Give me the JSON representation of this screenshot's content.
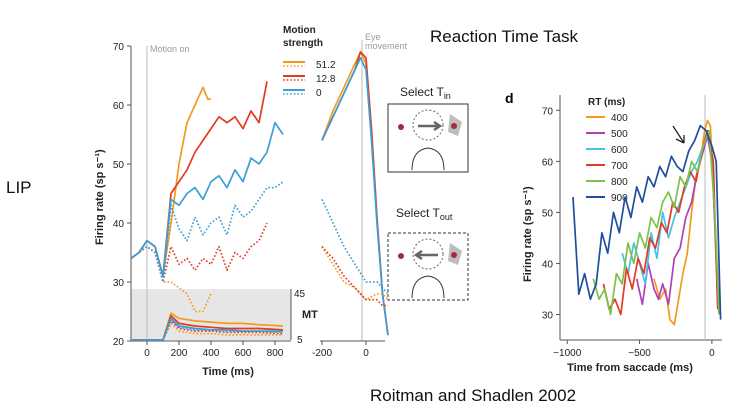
{
  "page": {
    "slide_title": "Reaction Time Task",
    "area_label": "LIP",
    "citation": "Roitman and Shadlen 2002"
  },
  "panel_left": {
    "y_ticks": [
      "20",
      "30",
      "40",
      "50",
      "60",
      "70"
    ],
    "x_ticks": [
      "0",
      "200",
      "400",
      "600",
      "800"
    ],
    "x_ticks_sac": [
      "-200",
      "0"
    ],
    "ylabel": "Firing rate (sp s⁻¹)",
    "xlabel": "Time (ms)",
    "motion_on": "Motion on",
    "eye_movement": "Eye movement",
    "legend_title": "Motion strength",
    "legend": [
      {
        "label": "51.2",
        "color": "#f39a1e"
      },
      {
        "label": "12.8",
        "color": "#e23b24"
      },
      {
        "label": "0",
        "color": "#3a9fd6"
      }
    ],
    "mt_label": "MT",
    "mt_ticks": [
      "45",
      "5"
    ],
    "select_tin": "Select T",
    "select_tin_sub": "in",
    "select_tout": "Select T",
    "select_tout_sub": "out"
  },
  "panel_d": {
    "panel_letter": "d",
    "legend_title": "RT (ms)",
    "y_ticks": [
      "30",
      "40",
      "50",
      "60",
      "70"
    ],
    "x_ticks": [
      "−1000",
      "−500",
      "0"
    ],
    "ylabel": "Firing rate (sp s⁻¹)",
    "xlabel": "Time from saccade (ms)"
  },
  "chart_data": [
    {
      "type": "line",
      "title": "",
      "xlabel": "Time (ms)",
      "ylabel": "Firing rate (sp s⁻¹)",
      "ylim": [
        20,
        70
      ],
      "xlim": [
        -100,
        900
      ],
      "series": [
        {
          "name": "51.2",
          "style": "solid",
          "color": "#f39a1e",
          "x": [
            -100,
            -50,
            0,
            50,
            100,
            150,
            200,
            250,
            300,
            350,
            380,
            400
          ],
          "y": [
            34,
            35,
            37,
            36,
            31,
            40,
            50,
            57,
            60,
            63,
            61,
            61
          ]
        },
        {
          "name": "12.8",
          "style": "solid",
          "color": "#e23b24",
          "x": [
            -100,
            -50,
            0,
            50,
            100,
            150,
            200,
            250,
            300,
            350,
            400,
            450,
            500,
            550,
            600,
            650,
            700,
            750
          ],
          "y": [
            34,
            35,
            37,
            36,
            31,
            45,
            47,
            49,
            52,
            54,
            56,
            58,
            57,
            58,
            56,
            59,
            57,
            64
          ]
        },
        {
          "name": "0",
          "style": "solid",
          "color": "#3a9fd6",
          "x": [
            -100,
            -50,
            0,
            50,
            100,
            150,
            200,
            250,
            300,
            350,
            400,
            450,
            500,
            550,
            600,
            650,
            700,
            750,
            800,
            850
          ],
          "y": [
            34,
            35,
            37,
            36,
            31,
            44,
            43,
            45,
            46,
            44,
            47,
            48,
            46,
            49,
            47,
            51,
            50,
            52,
            57,
            55
          ]
        },
        {
          "name": "51.2",
          "style": "dotted",
          "color": "#f39a1e",
          "x": [
            -100,
            -50,
            0,
            50,
            100,
            150,
            200,
            250,
            300,
            350,
            400
          ],
          "y": [
            34,
            35,
            36,
            35,
            30,
            30,
            29,
            28,
            25,
            25,
            28
          ]
        },
        {
          "name": "12.8",
          "style": "dotted",
          "color": "#e23b24",
          "x": [
            -100,
            -50,
            0,
            50,
            100,
            150,
            200,
            250,
            300,
            350,
            400,
            450,
            500,
            550,
            600,
            650,
            700,
            750
          ],
          "y": [
            34,
            35,
            36,
            35,
            30,
            36,
            33,
            34,
            32,
            34,
            33,
            36,
            32,
            35,
            34,
            36,
            37,
            40
          ]
        },
        {
          "name": "0",
          "style": "dotted",
          "color": "#3a9fd6",
          "x": [
            -100,
            -50,
            0,
            50,
            100,
            150,
            200,
            250,
            300,
            350,
            400,
            450,
            500,
            550,
            600,
            650,
            700,
            750,
            800,
            850
          ],
          "y": [
            34,
            35,
            36,
            35,
            30,
            43,
            39,
            37,
            41,
            38,
            40,
            41,
            38,
            43,
            41,
            42,
            44,
            46,
            46,
            47
          ]
        }
      ]
    },
    {
      "type": "line",
      "title": "",
      "xlabel": "",
      "ylabel": "",
      "ylim": [
        20,
        70
      ],
      "xlim": [
        -250,
        100
      ],
      "series": [
        {
          "name": "51.2",
          "style": "solid",
          "color": "#f39a1e",
          "x": [
            -200,
            -150,
            -100,
            -50,
            -25,
            0,
            25,
            50,
            75,
            100
          ],
          "y": [
            54,
            59,
            63,
            67,
            69,
            67,
            55,
            40,
            28,
            21
          ]
        },
        {
          "name": "12.8",
          "style": "solid",
          "color": "#e23b24",
          "x": [
            -200,
            -150,
            -100,
            -50,
            -25,
            0,
            25,
            50,
            75,
            100
          ],
          "y": [
            54,
            58,
            62,
            66,
            69,
            68,
            56,
            41,
            28,
            21
          ]
        },
        {
          "name": "0",
          "style": "solid",
          "color": "#3a9fd6",
          "x": [
            -200,
            -150,
            -100,
            -50,
            -25,
            0,
            25,
            50,
            75,
            100
          ],
          "y": [
            54,
            58,
            62,
            66,
            68,
            66,
            54,
            40,
            28,
            21
          ]
        },
        {
          "name": "51.2",
          "style": "dotted",
          "color": "#f39a1e",
          "x": [
            -200,
            -150,
            -100,
            -50,
            0,
            50,
            75,
            100
          ],
          "y": [
            36,
            33,
            30,
            29,
            27,
            28,
            28,
            27
          ]
        },
        {
          "name": "12.8",
          "style": "dotted",
          "color": "#e23b24",
          "x": [
            -200,
            -150,
            -100,
            -50,
            0,
            50,
            75,
            100
          ],
          "y": [
            36,
            34,
            31,
            29,
            27,
            27,
            26,
            26
          ]
        },
        {
          "name": "0",
          "style": "dotted",
          "color": "#3a9fd6",
          "x": [
            -200,
            -150,
            -100,
            -50,
            0,
            50,
            75,
            100
          ],
          "y": [
            44,
            40,
            36,
            33,
            30,
            30,
            29,
            28
          ]
        }
      ]
    },
    {
      "type": "line",
      "title": "",
      "xlabel": "Time (ms)",
      "ylabel": "MT",
      "ylim": [
        5,
        45
      ],
      "xlim": [
        -100,
        900
      ],
      "series": [
        {
          "name": "51.2",
          "style": "solid",
          "color": "#f39a1e",
          "x": [
            -100,
            100,
            150,
            200,
            300,
            400,
            500,
            600,
            700,
            850
          ],
          "y": [
            5,
            5,
            26,
            22,
            20,
            19,
            18,
            18,
            17,
            16
          ]
        },
        {
          "name": "12.8",
          "style": "solid",
          "color": "#e23b24",
          "x": [
            -100,
            100,
            150,
            200,
            300,
            400,
            500,
            600,
            700,
            850
          ],
          "y": [
            5,
            5,
            24,
            18,
            16,
            15,
            14,
            14,
            14,
            13
          ]
        },
        {
          "name": "0",
          "style": "solid",
          "color": "#3a9fd6",
          "x": [
            -100,
            100,
            150,
            200,
            300,
            400,
            500,
            600,
            700,
            850
          ],
          "y": [
            5,
            5,
            22,
            16,
            14,
            13,
            13,
            12,
            12,
            12
          ]
        },
        {
          "name": "51.2",
          "style": "dotted",
          "color": "#f39a1e",
          "x": [
            -100,
            100,
            150,
            200,
            300,
            400,
            500,
            600,
            700,
            850
          ],
          "y": [
            5,
            5,
            18,
            12,
            10,
            10,
            9,
            9,
            9,
            9
          ]
        },
        {
          "name": "12.8",
          "style": "dotted",
          "color": "#e23b24",
          "x": [
            -100,
            100,
            150,
            200,
            300,
            400,
            500,
            600,
            700,
            850
          ],
          "y": [
            5,
            5,
            20,
            14,
            12,
            12,
            11,
            11,
            11,
            10
          ]
        },
        {
          "name": "0",
          "style": "dotted",
          "color": "#3a9fd6",
          "x": [
            -100,
            100,
            150,
            200,
            300,
            400,
            500,
            600,
            700,
            850
          ],
          "y": [
            5,
            5,
            21,
            15,
            13,
            13,
            12,
            12,
            12,
            11
          ]
        }
      ]
    },
    {
      "type": "line",
      "title": "",
      "xlabel": "Time from saccade (ms)",
      "ylabel": "Firing rate (sp s⁻¹)",
      "ylim": [
        25,
        73
      ],
      "xlim": [
        -1050,
        70
      ],
      "legend_title": "RT (ms)",
      "series": [
        {
          "name": "400",
          "color": "#f39a1e",
          "x": [
            -400,
            -360,
            -320,
            -290,
            -260,
            -230,
            -200,
            -170,
            -140,
            -110,
            -80,
            -50,
            -30,
            -10,
            10,
            30,
            50
          ],
          "y": [
            37,
            33,
            35,
            29,
            28,
            33,
            38,
            42,
            50,
            57,
            60,
            66,
            68,
            67,
            55,
            40,
            31
          ]
        },
        {
          "name": "500",
          "color": "#b040b8",
          "x": [
            -520,
            -480,
            -440,
            -400,
            -370,
            -340,
            -300,
            -260,
            -220,
            -180,
            -140,
            -100,
            -60,
            -30,
            0,
            30,
            50
          ],
          "y": [
            37,
            32,
            40,
            35,
            33,
            36,
            32,
            41,
            43,
            49,
            52,
            58,
            62,
            65,
            60,
            42,
            30
          ]
        },
        {
          "name": "600",
          "color": "#45c1ea",
          "x": [
            -620,
            -580,
            -540,
            -500,
            -460,
            -420,
            -380,
            -340,
            -300,
            -260,
            -220,
            -180,
            -140,
            -100,
            -60,
            -20,
            10,
            40
          ],
          "y": [
            42,
            38,
            44,
            40,
            36,
            46,
            41,
            50,
            45,
            49,
            52,
            55,
            58,
            60,
            63,
            66,
            58,
            32
          ]
        },
        {
          "name": "700",
          "color": "#e23b24",
          "x": [
            -750,
            -710,
            -670,
            -630,
            -590,
            -550,
            -510,
            -470,
            -430,
            -390,
            -350,
            -310,
            -270,
            -230,
            -190,
            -150,
            -110,
            -70,
            -30,
            10,
            40
          ],
          "y": [
            36,
            31,
            33,
            30,
            39,
            35,
            41,
            38,
            45,
            43,
            48,
            46,
            52,
            50,
            55,
            58,
            56,
            62,
            66,
            60,
            31
          ]
        },
        {
          "name": "800",
          "color": "#7cc24a",
          "x": [
            -820,
            -780,
            -740,
            -700,
            -660,
            -620,
            -580,
            -540,
            -500,
            -460,
            -420,
            -380,
            -340,
            -300,
            -260,
            -220,
            -180,
            -140,
            -100,
            -60,
            -20,
            20,
            50
          ],
          "y": [
            37,
            33,
            35,
            30,
            38,
            36,
            44,
            40,
            46,
            43,
            49,
            47,
            52,
            54,
            51,
            57,
            55,
            60,
            58,
            63,
            66,
            50,
            30
          ]
        },
        {
          "name": "900",
          "color": "#1f4e9c",
          "x": [
            -960,
            -920,
            -880,
            -840,
            -800,
            -760,
            -720,
            -680,
            -640,
            -600,
            -560,
            -520,
            -480,
            -440,
            -400,
            -360,
            -320,
            -280,
            -240,
            -200,
            -160,
            -120,
            -80,
            -40,
            0,
            30,
            60
          ],
          "y": [
            53,
            34,
            38,
            33,
            36,
            46,
            42,
            50,
            46,
            53,
            49,
            55,
            52,
            57,
            55,
            59,
            57,
            61,
            59,
            58,
            62,
            64,
            67,
            66,
            63,
            60,
            29
          ]
        }
      ]
    }
  ]
}
